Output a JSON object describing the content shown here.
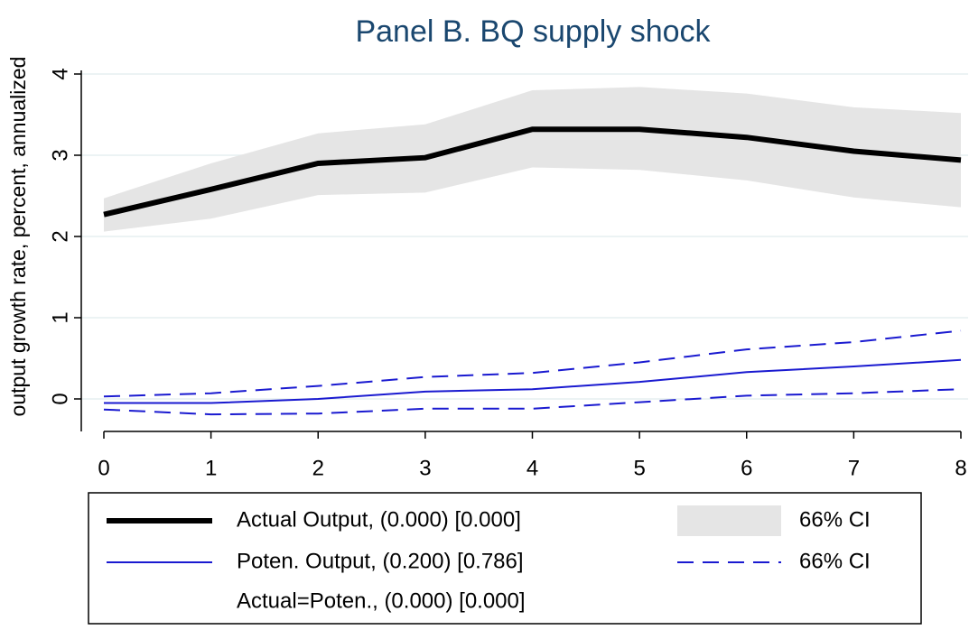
{
  "chart_data": {
    "type": "line",
    "title": "Panel B. BQ supply shock",
    "y_label": "output growth rate, percent, annualized",
    "x": [
      0,
      1,
      2,
      3,
      4,
      5,
      6,
      7,
      8
    ],
    "series": [
      {
        "name": "Actual Output, (0.000) [0.000]",
        "color": "#000000",
        "style": "thick",
        "values": [
          2.27,
          2.58,
          2.9,
          2.97,
          3.32,
          3.32,
          3.22,
          3.05,
          2.94
        ]
      },
      {
        "name": "Poten. Output, (0.200) [0.786]",
        "color": "#1a1ad0",
        "style": "thin",
        "values": [
          -0.05,
          -0.05,
          0.0,
          0.09,
          0.12,
          0.21,
          0.33,
          0.4,
          0.48
        ]
      }
    ],
    "bands": [
      {
        "name": "66% CI",
        "color": "#e5e5e5",
        "style": "area",
        "upper": [
          2.47,
          2.9,
          3.27,
          3.38,
          3.8,
          3.84,
          3.76,
          3.59,
          3.52
        ],
        "lower": [
          2.06,
          2.22,
          2.51,
          2.54,
          2.85,
          2.82,
          2.69,
          2.48,
          2.36
        ]
      },
      {
        "name": "66% CI",
        "color": "#1a1ad0",
        "style": "dashed",
        "upper": [
          0.03,
          0.07,
          0.16,
          0.27,
          0.32,
          0.45,
          0.61,
          0.7,
          0.84
        ],
        "lower": [
          -0.13,
          -0.19,
          -0.18,
          -0.12,
          -0.12,
          -0.04,
          0.04,
          0.07,
          0.12
        ]
      }
    ],
    "legend_notes": [
      "Actual=Poten., (0.000) [0.000]"
    ],
    "xlim": [
      0,
      8
    ],
    "xticks": [
      0,
      1,
      2,
      3,
      4,
      5,
      6,
      7,
      8
    ],
    "ylim": [
      -0.4,
      4
    ],
    "yticks": [
      0,
      1,
      2,
      3,
      4
    ],
    "grid": true
  }
}
